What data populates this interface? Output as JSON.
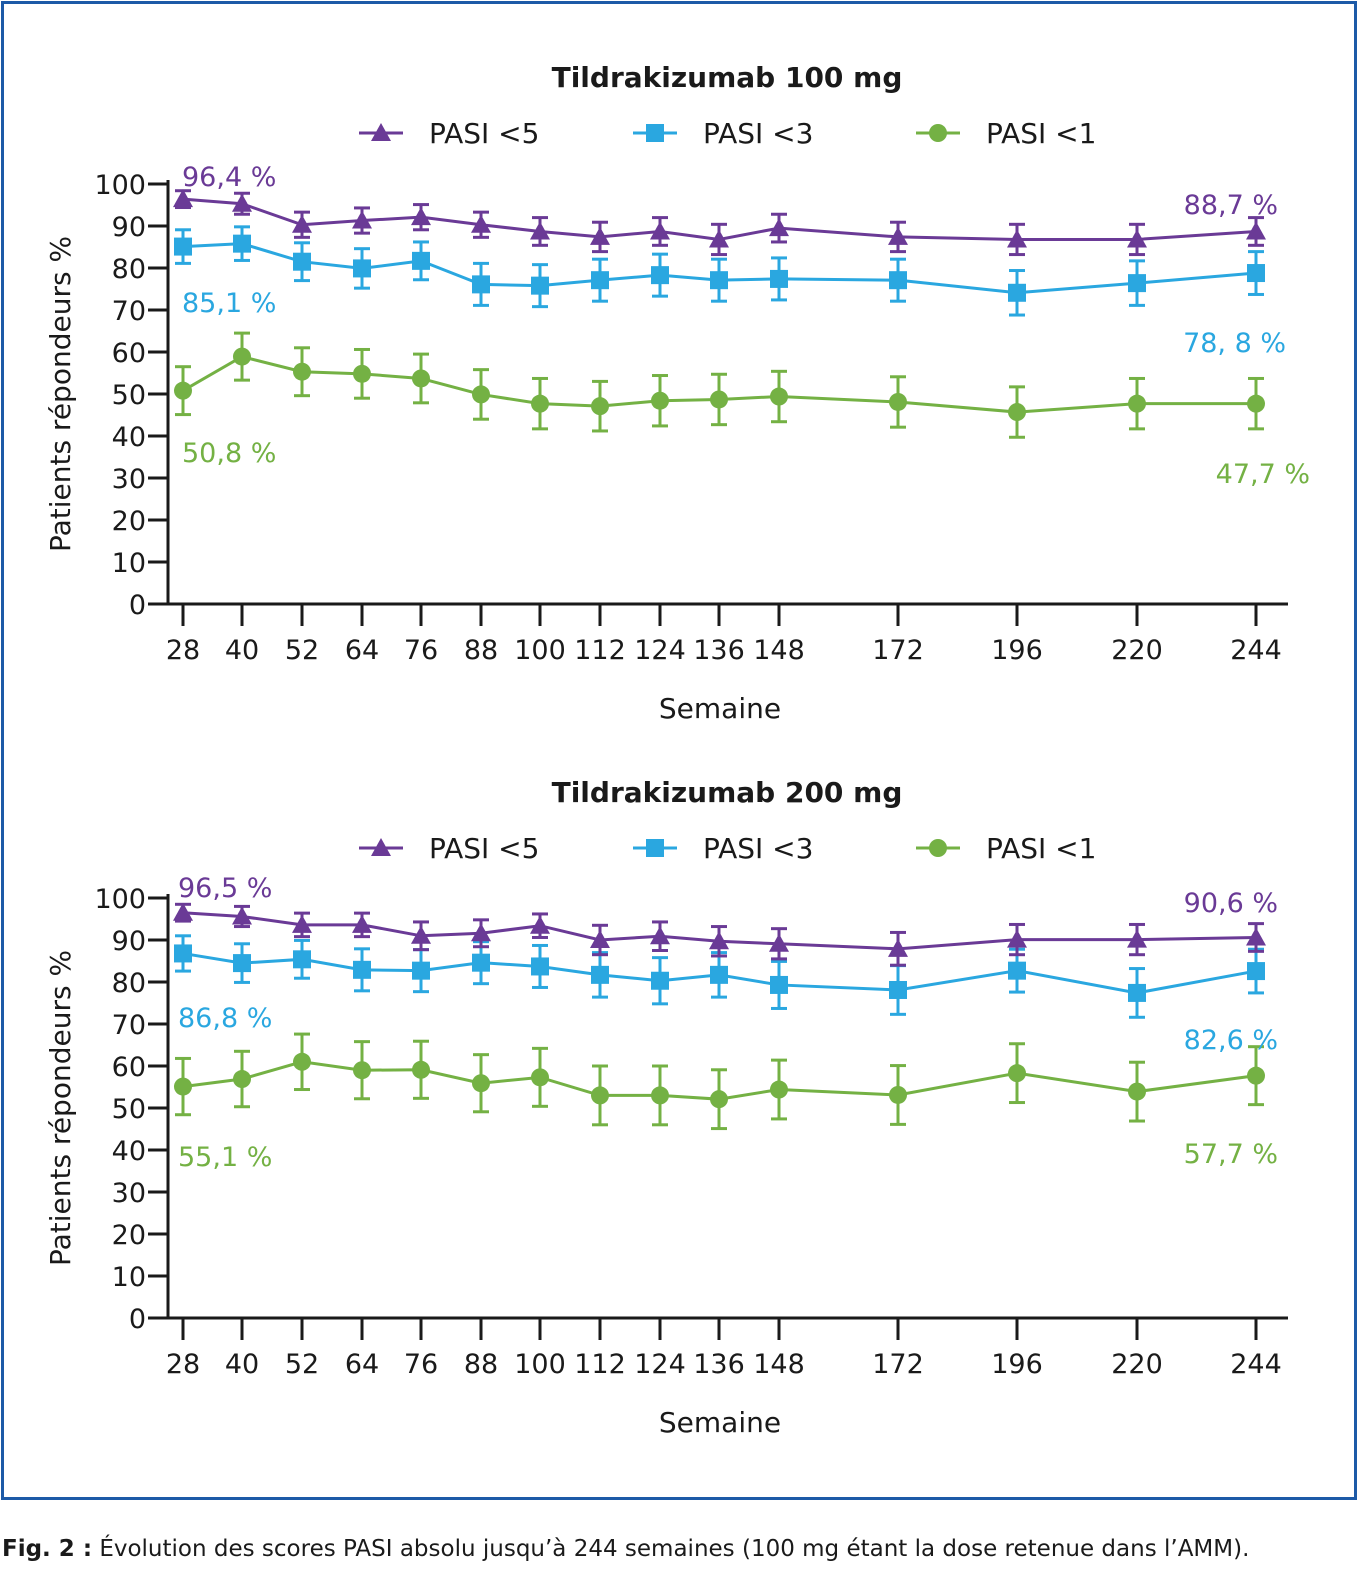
{
  "colors": {
    "frame": "#1d5aa7",
    "pasi5": "#6a3a96",
    "pasi3": "#2aa7e0",
    "pasi1": "#74b144",
    "axis": "#1a1a1a"
  },
  "caption": {
    "label": "Fig. 2 :",
    "text": " Évolution des scores PASI absolu jusqu’à 244 semaines (100 mg étant la dose retenue dans l’AMM)."
  },
  "chart_data": [
    {
      "type": "line",
      "title": "Tildrakizumab 100 mg",
      "xlabel": "Semaine",
      "ylabel": "Patients répondeurs %",
      "ylim": [
        0,
        100
      ],
      "yticks": [
        0,
        10,
        20,
        30,
        40,
        50,
        60,
        70,
        80,
        90,
        100
      ],
      "x": [
        28,
        40,
        52,
        64,
        76,
        88,
        100,
        112,
        124,
        136,
        148,
        172,
        196,
        220,
        244
      ],
      "legend_position": "top-center",
      "series": [
        {
          "name": "PASI <5",
          "marker": "triangle",
          "color": "#6a3a96",
          "values": [
            96.4,
            95.3,
            90.3,
            91.3,
            92.1,
            90.3,
            88.7,
            87.4,
            88.7,
            86.8,
            89.5,
            87.4,
            86.8,
            86.8,
            88.7
          ],
          "error": [
            2,
            2.5,
            3,
            3,
            3,
            3,
            3.3,
            3.5,
            3.3,
            3.6,
            3.3,
            3.5,
            3.6,
            3.6,
            3.3
          ],
          "first_label": "96,4 %",
          "last_label": "88,7 %"
        },
        {
          "name": "PASI <3",
          "marker": "square",
          "color": "#2aa7e0",
          "values": [
            85.1,
            85.8,
            81.5,
            79.9,
            81.7,
            76.1,
            75.8,
            77.1,
            78.3,
            77.1,
            77.4,
            77.1,
            74.1,
            76.4,
            78.8
          ],
          "error": [
            4,
            4,
            4.5,
            4.7,
            4.5,
            5,
            5,
            5,
            5,
            5,
            5,
            5,
            5.3,
            5.3,
            5.1
          ],
          "first_label": "85,1 %",
          "last_label": "78, 8 %"
        },
        {
          "name": "PASI <1",
          "marker": "circle",
          "color": "#74b144",
          "values": [
            50.8,
            58.9,
            55.3,
            54.8,
            53.7,
            49.9,
            47.7,
            47.1,
            48.4,
            48.7,
            49.4,
            48.1,
            45.7,
            47.7,
            47.7
          ],
          "error": [
            5.7,
            5.6,
            5.7,
            5.8,
            5.8,
            5.9,
            6,
            5.9,
            6,
            6,
            6,
            6,
            6,
            6,
            6
          ],
          "first_label": "50,8 %",
          "last_label": "47,7 %"
        }
      ]
    },
    {
      "type": "line",
      "title": "Tildrakizumab 200 mg",
      "xlabel": "Semaine",
      "ylabel": "Patients répondeurs %",
      "ylim": [
        0,
        100
      ],
      "yticks": [
        0,
        10,
        20,
        30,
        40,
        50,
        60,
        70,
        80,
        90,
        100
      ],
      "x": [
        28,
        40,
        52,
        64,
        76,
        88,
        100,
        112,
        124,
        136,
        148,
        172,
        196,
        220,
        244
      ],
      "legend_position": "top-center",
      "series": [
        {
          "name": "PASI <5",
          "marker": "triangle",
          "color": "#6a3a96",
          "values": [
            96.5,
            95.6,
            93.6,
            93.6,
            91.0,
            91.6,
            93.4,
            90.0,
            90.9,
            89.7,
            89.1,
            87.9,
            90.1,
            90.1,
            90.6
          ],
          "error": [
            2,
            2.4,
            2.8,
            2.8,
            3.3,
            3.2,
            2.8,
            3.5,
            3.4,
            3.5,
            3.6,
            3.9,
            3.6,
            3.6,
            3.3
          ],
          "first_label": "96,5 %",
          "last_label": "90,6 %"
        },
        {
          "name": "PASI <3",
          "marker": "square",
          "color": "#2aa7e0",
          "values": [
            86.8,
            84.5,
            85.4,
            82.9,
            82.7,
            84.6,
            83.7,
            81.7,
            80.3,
            81.7,
            79.3,
            78.1,
            82.7,
            77.4,
            82.6
          ],
          "error": [
            4.2,
            4.6,
            4.5,
            5,
            5,
            5,
            5,
            5.3,
            5.5,
            5.3,
            5.6,
            5.8,
            5.1,
            5.8,
            5.2
          ],
          "first_label": "86,8 %",
          "last_label": "82,6 %"
        },
        {
          "name": "PASI <1",
          "marker": "circle",
          "color": "#74b144",
          "values": [
            55.1,
            56.9,
            61.0,
            59.0,
            59.1,
            55.9,
            57.3,
            53.0,
            53.0,
            52.1,
            54.4,
            53.1,
            58.3,
            53.9,
            57.7
          ],
          "error": [
            6.7,
            6.6,
            6.6,
            6.8,
            6.8,
            6.8,
            6.9,
            7,
            7,
            7,
            7,
            7,
            7,
            7,
            6.9
          ],
          "first_label": "55,1 %",
          "last_label": "57,7 %"
        }
      ]
    }
  ]
}
